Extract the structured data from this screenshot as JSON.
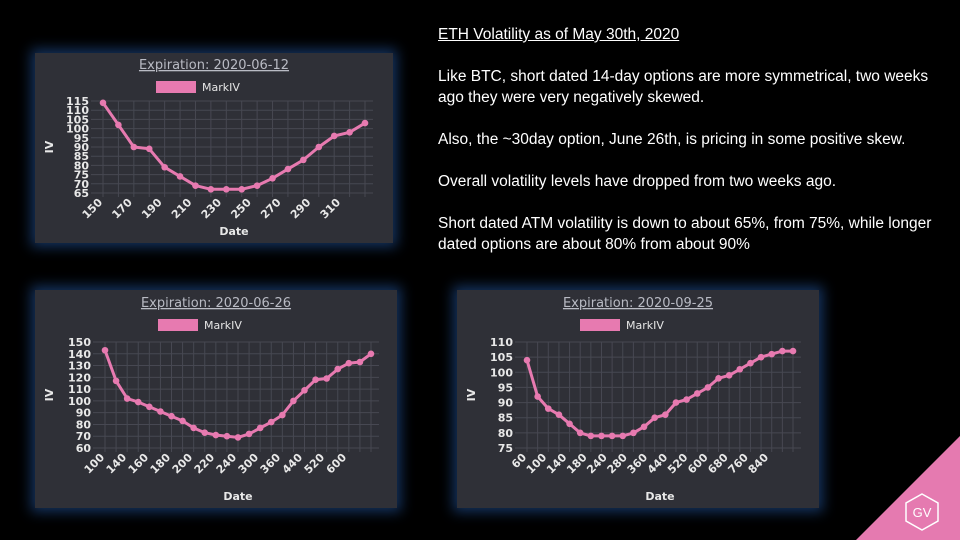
{
  "text": {
    "heading": "ETH Volatility as of May 30th, 2020",
    "para1": "Like BTC, short dated 14-day options are more symmetrical, two weeks ago they were very negatively skewed.",
    "para2": "Also, the ~30day option, June 26th, is pricing in some positive skew.",
    "para3": "Overall volatility levels have dropped from two weeks ago.",
    "para4": "Short dated ATM volatility is down to about 65%, from 75%, while longer dated options are about 80% from about 90%"
  },
  "logo": {
    "text": "GV",
    "color": "#e57ab0"
  },
  "colors": {
    "series": "#e77ab0",
    "panel": "#2f3037",
    "glow": "#193c6e"
  },
  "chart_data": [
    {
      "type": "line",
      "title": "Expiration: 2020-06-12",
      "xlabel": "Date",
      "ylabel": "IV",
      "legend": "top-center",
      "grid": true,
      "series": [
        {
          "name": "MarkIV",
          "color": "#e77ab0"
        }
      ],
      "x_tick_labels": [
        "150",
        "170",
        "190",
        "210",
        "230",
        "250",
        "270",
        "290",
        "310"
      ],
      "y_ticks": [
        65,
        70,
        75,
        80,
        85,
        90,
        95,
        100,
        105,
        110,
        115
      ],
      "ylim": [
        65,
        115
      ],
      "x": [
        150,
        160,
        170,
        180,
        190,
        200,
        210,
        220,
        230,
        240,
        250,
        260,
        270,
        280,
        290,
        300,
        310,
        320
      ],
      "values": [
        114,
        102,
        90,
        89,
        79,
        74,
        69,
        67,
        67,
        67,
        69,
        73,
        78,
        83,
        90,
        96,
        98,
        103
      ]
    },
    {
      "type": "line",
      "title": "Expiration: 2020-06-26",
      "xlabel": "Date",
      "ylabel": "IV",
      "legend": "top-center",
      "grid": true,
      "series": [
        {
          "name": "MarkIV",
          "color": "#e77ab0"
        }
      ],
      "x_tick_labels": [
        "100",
        "140",
        "160",
        "180",
        "200",
        "220",
        "240",
        "300",
        "360",
        "440",
        "520",
        "600"
      ],
      "y_ticks": [
        60,
        70,
        80,
        90,
        100,
        110,
        120,
        130,
        140,
        150
      ],
      "ylim": [
        60,
        150
      ],
      "values": [
        143,
        117,
        102,
        99,
        95,
        91,
        87,
        83,
        77,
        73,
        71,
        70,
        69,
        72,
        77,
        82,
        88,
        100,
        109,
        118,
        119,
        127,
        132,
        133,
        140
      ]
    },
    {
      "type": "line",
      "title": "Expiration: 2020-09-25",
      "xlabel": "Date",
      "ylabel": "IV",
      "legend": "top-center",
      "grid": true,
      "series": [
        {
          "name": "MarkIV",
          "color": "#e77ab0"
        }
      ],
      "x_tick_labels": [
        "60",
        "100",
        "140",
        "180",
        "240",
        "280",
        "360",
        "440",
        "520",
        "600",
        "680",
        "760",
        "840"
      ],
      "y_ticks": [
        75,
        80,
        85,
        90,
        95,
        100,
        105,
        110
      ],
      "ylim": [
        75,
        110
      ],
      "values": [
        104,
        92,
        88,
        86,
        83,
        80,
        79,
        79,
        79,
        79,
        80,
        82,
        85,
        86,
        90,
        91,
        93,
        95,
        98,
        99,
        101,
        103,
        105,
        106,
        107,
        107
      ]
    }
  ]
}
